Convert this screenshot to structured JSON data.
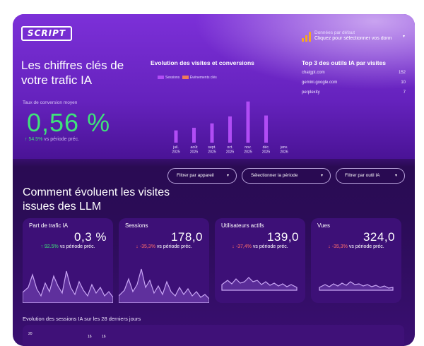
{
  "header": {
    "logo": "SCRIPT",
    "source_line1": "Données par défaut",
    "source_line2": "Cliquez pour sélectionner vos donn",
    "source_chevron": "▾"
  },
  "hero": {
    "title": "Les chiffres clés de votre trafic IA",
    "conversion_label": "Taux de conversion moyen",
    "conversion_value": "0,56 %",
    "conversion_delta": "54.5%",
    "conversion_delta_suffix": "vs période préc."
  },
  "chart_data": {
    "type": "bar",
    "title": "Evolution des visites et conversions",
    "categories": [
      "juil. 2025",
      "août 2025",
      "sept. 2025",
      "oct. 2025",
      "nov. 2025",
      "déc. 2025",
      "janv. 2026"
    ],
    "series": [
      {
        "name": "Sessions",
        "values": [
          14,
          17,
          22,
          30,
          47,
          31,
          0
        ]
      },
      {
        "name": "Événements clés",
        "values": [
          0,
          0,
          0,
          0,
          0,
          0,
          0
        ]
      }
    ],
    "colors": {
      "Sessions": "#b14cf5",
      "Événements clés": "#f07b5a"
    }
  },
  "top3": {
    "title": "Top 3 des outils IA par visites",
    "rows": [
      {
        "name": "chatgpt.com",
        "value": "152"
      },
      {
        "name": "gemini.google.com",
        "value": "10"
      },
      {
        "name": "perplexity",
        "value": "7"
      }
    ]
  },
  "filters": {
    "device": "Filtrer par appareil",
    "period": "Sélectionner la période",
    "tool": "Filtrer par outil IA",
    "chevron": "▾"
  },
  "section": {
    "title": "Comment évoluent les visites issues des LLM"
  },
  "cards": [
    {
      "label": "Part de trafic IA",
      "value": "0,3 %",
      "delta": "92.5%",
      "suffix": "vs période préc.",
      "trend": "up",
      "arrow": "↑"
    },
    {
      "label": "Sessions",
      "value": "178,0",
      "delta": "-35,3%",
      "suffix": "vs période préc.",
      "trend": "down",
      "arrow": "↓"
    },
    {
      "label": "Utilisateurs actifs",
      "value": "139,0",
      "delta": "-37,4%",
      "suffix": "vs période préc.",
      "trend": "down",
      "arrow": "↓"
    },
    {
      "label": "Vues",
      "value": "324,0",
      "delta": "-35,3%",
      "suffix": "vs période préc.",
      "trend": "down",
      "arrow": "↓"
    }
  ],
  "timeseries": {
    "title": "Evolution des sessions IA sur les 28 derniers jours",
    "labels": [
      "20",
      "16",
      "16"
    ]
  },
  "colors": {
    "accent_green": "#3fe37a",
    "accent_red": "#ff6b6b",
    "brand_purple": "#7b2fd6"
  }
}
